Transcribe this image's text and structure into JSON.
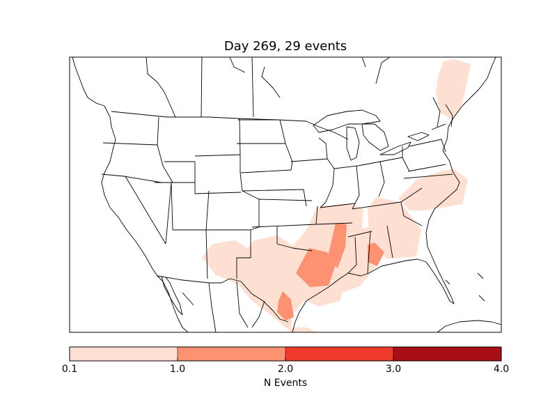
{
  "title": "Day 269, 29 events",
  "colorbar": {
    "label": "N Events",
    "ticks": [
      "0.1",
      "1.0",
      "2.0",
      "3.0",
      "4.0"
    ],
    "bins": [
      {
        "min": 0.1,
        "max": 1.0,
        "color": "#fee0d2"
      },
      {
        "min": 1.0,
        "max": 2.0,
        "color": "#fc9272"
      },
      {
        "min": 2.0,
        "max": 3.0,
        "color": "#ef3b2c"
      },
      {
        "min": 3.0,
        "max": 4.0,
        "color": "#a50f15"
      }
    ]
  },
  "map": {
    "region": "North America (contiguous United States)",
    "projection": "Lambert conformal",
    "base_layers": [
      "coastlines",
      "country borders",
      "state borders"
    ],
    "line_color": "#000000"
  }
}
